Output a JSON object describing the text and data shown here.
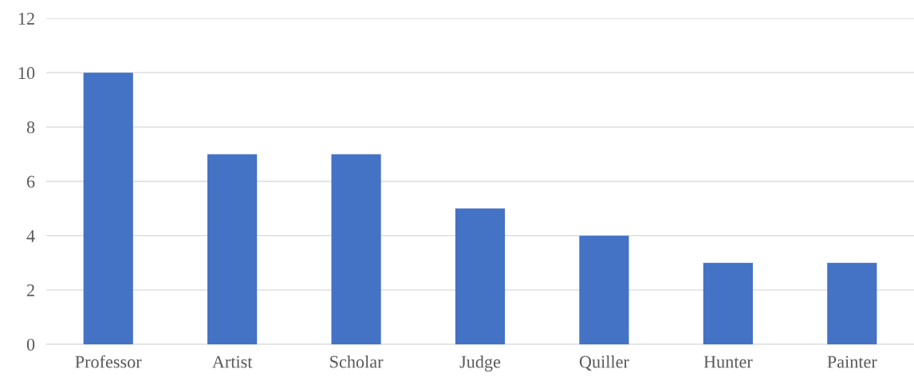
{
  "chart_data": {
    "type": "bar",
    "categories": [
      "Professor",
      "Artist",
      "Scholar",
      "Judge",
      "Quiller",
      "Hunter",
      "Painter"
    ],
    "values": [
      10,
      7,
      7,
      5,
      4,
      3,
      3
    ],
    "color": "#4472c4",
    "ylim": [
      0,
      12
    ],
    "yticks": [
      0,
      2,
      4,
      6,
      8,
      10,
      12
    ],
    "grid": "y",
    "legend": false
  }
}
